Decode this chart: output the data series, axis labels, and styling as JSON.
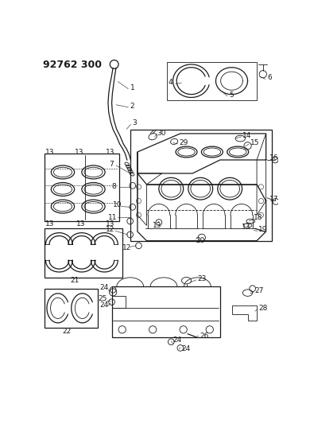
{
  "title": "92762 300",
  "bg_color": "#f5f5f0",
  "line_color": "#1a1a1a",
  "title_fontsize": 9,
  "label_fontsize": 6.5,
  "fig_width": 3.9,
  "fig_height": 5.33,
  "dpi": 100
}
